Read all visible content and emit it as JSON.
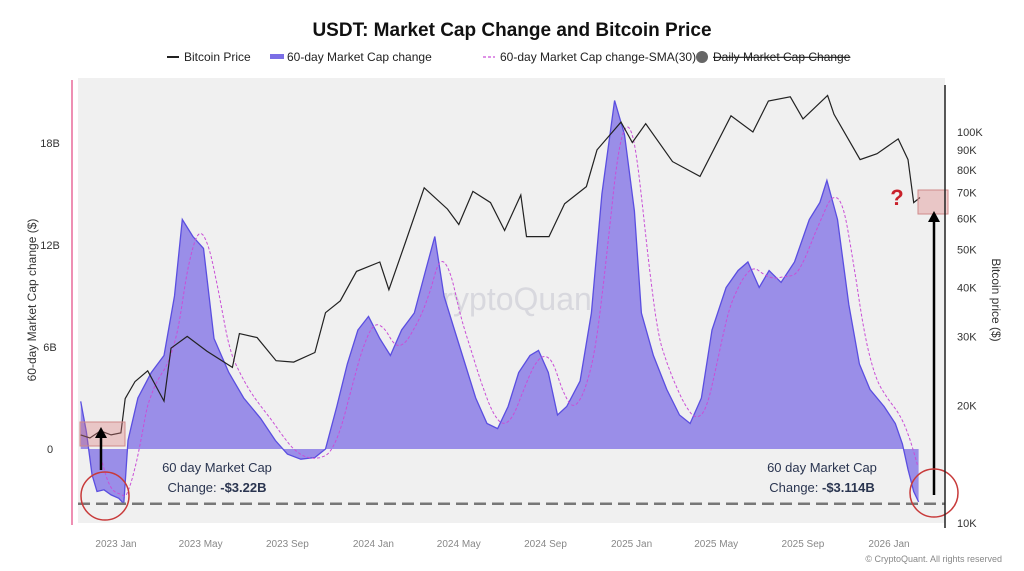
{
  "chart_data": {
    "type": "area",
    "title": "USDT: Market Cap Change and Bitcoin Price",
    "ylabel": "60-day Market Cap change ($)",
    "y2label": "Bitcoin price ($)",
    "ylim": [
      -4.4,
      21.5
    ],
    "y2lim_log": [
      10000,
      130000
    ],
    "y2scale": "log",
    "grid": false,
    "legend_position": "top",
    "yticks": [
      {
        "v": 18,
        "label": "18B"
      },
      {
        "v": 12,
        "label": "12B"
      },
      {
        "v": 6,
        "label": "6B"
      },
      {
        "v": 0,
        "label": "0"
      }
    ],
    "y2ticks": [
      {
        "v": 100000,
        "label": "100K"
      },
      {
        "v": 90000,
        "label": "90K"
      },
      {
        "v": 80000,
        "label": "80K"
      },
      {
        "v": 70000,
        "label": "70K"
      },
      {
        "v": 60000,
        "label": "60K"
      },
      {
        "v": 50000,
        "label": "50K"
      },
      {
        "v": 40000,
        "label": "40K"
      },
      {
        "v": 30000,
        "label": "30K"
      },
      {
        "v": 20000,
        "label": "20K"
      },
      {
        "v": 10000,
        "label": "10K"
      }
    ],
    "xticks": [
      {
        "d": "2023-01-01",
        "label": "2023 Jan"
      },
      {
        "d": "2023-05-01",
        "label": "2023 May"
      },
      {
        "d": "2023-09-01",
        "label": "2023 Sep"
      },
      {
        "d": "2024-01-01",
        "label": "2024 Jan"
      },
      {
        "d": "2024-05-01",
        "label": "2024 May"
      },
      {
        "d": "2024-09-01",
        "label": "2024 Sep"
      },
      {
        "d": "2025-01-01",
        "label": "2025 Jan"
      },
      {
        "d": "2025-05-01",
        "label": "2025 May"
      },
      {
        "d": "2025-09-01",
        "label": "2025 Sep"
      },
      {
        "d": "2026-01-01",
        "label": "2026 Jan"
      }
    ],
    "legend": [
      {
        "name": "Bitcoin Price",
        "color": "#222222",
        "style": "line"
      },
      {
        "name": "60-day Market Cap change",
        "color": "#7b6fe6",
        "style": "area"
      },
      {
        "name": "60-day Market Cap change-SMA(30)",
        "color": "#c94fd6",
        "style": "dashed"
      },
      {
        "name": "Daily Market Cap Change",
        "color": "#666666",
        "style": "dot",
        "hidden": true
      }
    ],
    "series": [
      {
        "name": "60-day Market Cap change",
        "unit": "B USD",
        "points": [
          [
            "2022-11-12",
            2.8
          ],
          [
            "2022-11-20",
            1.0
          ],
          [
            "2022-11-28",
            -1.5
          ],
          [
            "2022-12-05",
            -2.5
          ],
          [
            "2022-12-15",
            -2.4
          ],
          [
            "2022-12-25",
            -2.7
          ],
          [
            "2023-01-05",
            -2.9
          ],
          [
            "2023-01-12",
            -3.22
          ],
          [
            "2023-01-18",
            0.5
          ],
          [
            "2023-02-01",
            3.0
          ],
          [
            "2023-02-20",
            4.5
          ],
          [
            "2023-03-10",
            5.5
          ],
          [
            "2023-03-25",
            9.0
          ],
          [
            "2023-04-05",
            13.5
          ],
          [
            "2023-04-20",
            12.5
          ],
          [
            "2023-05-05",
            11.8
          ],
          [
            "2023-05-20",
            6.5
          ],
          [
            "2023-06-10",
            4.5
          ],
          [
            "2023-07-01",
            3.0
          ],
          [
            "2023-07-25",
            1.8
          ],
          [
            "2023-08-15",
            0.5
          ],
          [
            "2023-09-01",
            -0.3
          ],
          [
            "2023-09-20",
            -0.6
          ],
          [
            "2023-10-10",
            -0.5
          ],
          [
            "2023-10-25",
            0.0
          ],
          [
            "2023-11-10",
            2.5
          ],
          [
            "2023-11-25",
            5.0
          ],
          [
            "2023-12-10",
            7.0
          ],
          [
            "2023-12-25",
            7.8
          ],
          [
            "2024-01-10",
            6.5
          ],
          [
            "2024-01-25",
            5.5
          ],
          [
            "2024-02-10",
            7.0
          ],
          [
            "2024-02-28",
            8.0
          ],
          [
            "2024-03-15",
            10.5
          ],
          [
            "2024-03-28",
            12.5
          ],
          [
            "2024-04-10",
            9.0
          ],
          [
            "2024-04-25",
            7.0
          ],
          [
            "2024-05-10",
            5.0
          ],
          [
            "2024-05-25",
            3.0
          ],
          [
            "2024-06-10",
            1.5
          ],
          [
            "2024-06-25",
            1.2
          ],
          [
            "2024-07-10",
            2.5
          ],
          [
            "2024-07-25",
            4.5
          ],
          [
            "2024-08-10",
            5.5
          ],
          [
            "2024-08-22",
            5.8
          ],
          [
            "2024-09-05",
            4.5
          ],
          [
            "2024-09-18",
            2.0
          ],
          [
            "2024-10-01",
            2.5
          ],
          [
            "2024-10-20",
            4.0
          ],
          [
            "2024-11-05",
            8.0
          ],
          [
            "2024-11-20",
            15.0
          ],
          [
            "2024-12-08",
            20.5
          ],
          [
            "2024-12-22",
            18.5
          ],
          [
            "2025-01-05",
            14.0
          ],
          [
            "2025-01-15",
            8.0
          ],
          [
            "2025-02-01",
            5.5
          ],
          [
            "2025-02-20",
            3.5
          ],
          [
            "2025-03-10",
            2.0
          ],
          [
            "2025-03-25",
            1.5
          ],
          [
            "2025-04-10",
            3.0
          ],
          [
            "2025-04-25",
            7.0
          ],
          [
            "2025-05-15",
            9.5
          ],
          [
            "2025-06-01",
            10.5
          ],
          [
            "2025-06-15",
            11.0
          ],
          [
            "2025-07-01",
            9.5
          ],
          [
            "2025-07-15",
            10.5
          ],
          [
            "2025-08-01",
            9.8
          ],
          [
            "2025-08-20",
            11.0
          ],
          [
            "2025-09-10",
            13.5
          ],
          [
            "2025-09-25",
            14.5
          ],
          [
            "2025-10-05",
            15.8
          ],
          [
            "2025-10-20",
            13.5
          ],
          [
            "2025-11-05",
            8.5
          ],
          [
            "2025-11-20",
            5.0
          ],
          [
            "2025-12-05",
            3.5
          ],
          [
            "2025-12-25",
            2.5
          ],
          [
            "2026-01-10",
            1.5
          ],
          [
            "2026-01-20",
            0.3
          ],
          [
            "2026-01-28",
            -1.2
          ],
          [
            "2026-02-05",
            -2.5
          ],
          [
            "2026-02-12",
            -3.114
          ]
        ]
      },
      {
        "name": "Bitcoin Price",
        "unit": "USD",
        "points": [
          [
            "2022-11-12",
            16800
          ],
          [
            "2022-11-25",
            16500
          ],
          [
            "2022-12-10",
            17200
          ],
          [
            "2022-12-25",
            16800
          ],
          [
            "2023-01-08",
            17000
          ],
          [
            "2023-01-14",
            20800
          ],
          [
            "2023-01-28",
            23000
          ],
          [
            "2023-02-15",
            24500
          ],
          [
            "2023-03-10",
            20500
          ],
          [
            "2023-03-20",
            28000
          ],
          [
            "2023-04-12",
            30000
          ],
          [
            "2023-05-10",
            27500
          ],
          [
            "2023-06-15",
            25000
          ],
          [
            "2023-06-25",
            30500
          ],
          [
            "2023-07-20",
            29800
          ],
          [
            "2023-08-16",
            26000
          ],
          [
            "2023-09-10",
            25800
          ],
          [
            "2023-10-10",
            27300
          ],
          [
            "2023-10-25",
            34500
          ],
          [
            "2023-11-15",
            37000
          ],
          [
            "2023-12-08",
            44000
          ],
          [
            "2024-01-10",
            46500
          ],
          [
            "2024-01-23",
            39500
          ],
          [
            "2024-02-15",
            52000
          ],
          [
            "2024-03-13",
            72000
          ],
          [
            "2024-04-15",
            63500
          ],
          [
            "2024-05-01",
            58000
          ],
          [
            "2024-05-21",
            70500
          ],
          [
            "2024-06-15",
            66000
          ],
          [
            "2024-07-05",
            56000
          ],
          [
            "2024-07-28",
            69000
          ],
          [
            "2024-08-05",
            54000
          ],
          [
            "2024-09-06",
            54000
          ],
          [
            "2024-09-28",
            65500
          ],
          [
            "2024-10-29",
            72500
          ],
          [
            "2024-11-13",
            90000
          ],
          [
            "2024-12-17",
            106000
          ],
          [
            "2025-01-02",
            94000
          ],
          [
            "2025-01-21",
            105000
          ],
          [
            "2025-02-28",
            84000
          ],
          [
            "2025-04-08",
            77000
          ],
          [
            "2025-05-22",
            110000
          ],
          [
            "2025-06-22",
            100000
          ],
          [
            "2025-07-14",
            120000
          ],
          [
            "2025-08-14",
            123000
          ],
          [
            "2025-09-01",
            108000
          ],
          [
            "2025-10-06",
            124000
          ],
          [
            "2025-10-15",
            111000
          ],
          [
            "2025-11-21",
            85000
          ],
          [
            "2025-12-15",
            88000
          ],
          [
            "2026-01-14",
            96000
          ],
          [
            "2026-01-28",
            85000
          ],
          [
            "2026-02-05",
            66000
          ],
          [
            "2026-02-14",
            68000
          ]
        ]
      }
    ],
    "sma_window_days": 30,
    "annotations": [
      {
        "label": "60 day Market Cap",
        "value_prefix": "Change: ",
        "value": "-$3.22B"
      },
      {
        "label": "60 day Market Cap",
        "value_prefix": "Change: ",
        "value": "-$3.114B"
      },
      {
        "label": "?"
      }
    ],
    "reference_line_value": -3.22
  },
  "watermark": "CryptoQuant",
  "footer": "© CryptoQuant. All rights reserved"
}
